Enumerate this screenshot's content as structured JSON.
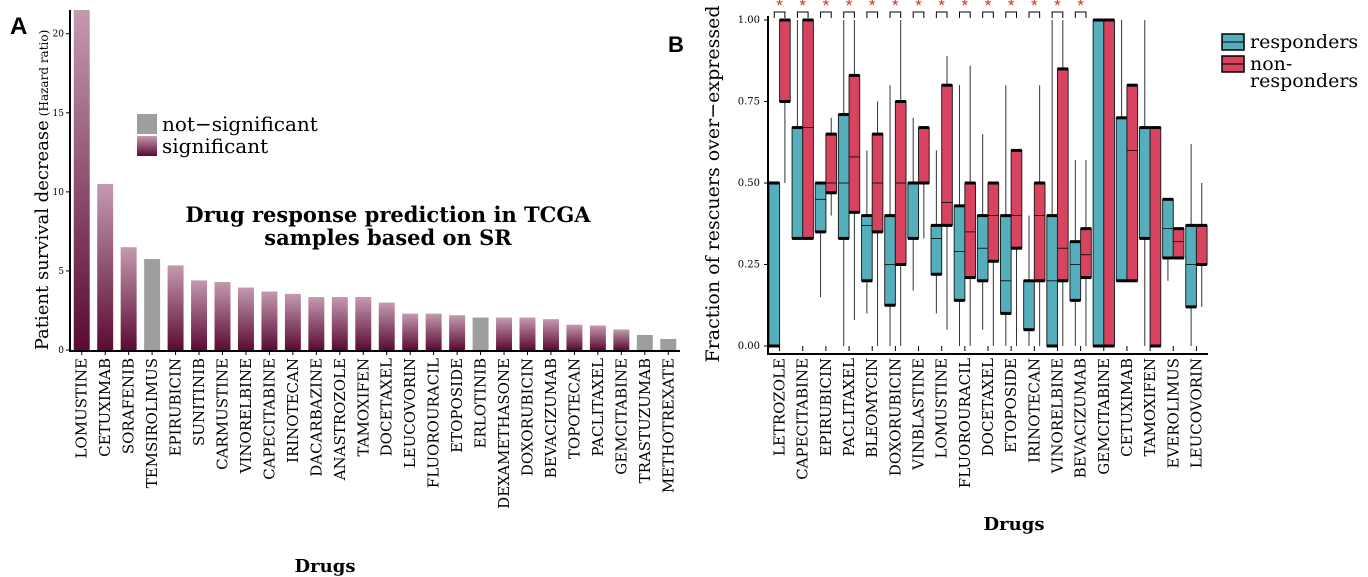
{
  "colors": {
    "sig_top": "#c49ab0",
    "sig_bottom": "#5b0a33",
    "not_sig": "#9e9e9e",
    "responders": "#55aebb",
    "nonresponders": "#d8435f",
    "star": "#c0392b"
  },
  "chart_data": [
    {
      "panel": "A",
      "type": "bar",
      "title": "Drug response prediction in TCGA samples based on SR",
      "title_lines": [
        "Drug response prediction in TCGA",
        "samples based on SR"
      ],
      "xlabel": "Drugs",
      "ylabel": "Patient survival decrease",
      "ylabel_unit": "(Hazard ratio)",
      "ylim": [
        0,
        21.5
      ],
      "yticks": [
        0,
        5,
        10,
        15,
        20
      ],
      "legend": {
        "placement": "top-left",
        "entries": [
          "not−significant",
          "significant"
        ]
      },
      "categories": [
        "LOMUSTINE",
        "CETUXIMAB",
        "SORAFENIB",
        "TEMSIROLIMUS",
        "EPIRUBICIN",
        "SUNITINIB",
        "CARMUSTINE",
        "VINORELBINE",
        "CAPECITABINE",
        "IRINOTECAN",
        "DACARBAZINE",
        "ANASTROZOLE",
        "TAMOXIFEN",
        "DOCETAXEL",
        "LEUCOVORIN",
        "FLUOROURACIL",
        "ETOPOSIDE",
        "ERLOTINIB",
        "DEXAMETHASONE",
        "DOXORUBICIN",
        "BEVACIZUMAB",
        "TOPOTECAN",
        "PACLITAXEL",
        "GEMCITABINE",
        "TRASTUZUMAB",
        "METHOTREXATE"
      ],
      "values": [
        21.5,
        10.5,
        6.5,
        5.75,
        5.35,
        4.4,
        4.3,
        3.95,
        3.7,
        3.55,
        3.35,
        3.35,
        3.35,
        3.0,
        2.3,
        2.3,
        2.2,
        2.05,
        2.05,
        2.05,
        1.95,
        1.6,
        1.55,
        1.3,
        0.95,
        0.7
      ],
      "significant": [
        true,
        true,
        true,
        false,
        true,
        true,
        true,
        true,
        true,
        true,
        true,
        true,
        true,
        true,
        true,
        true,
        true,
        false,
        true,
        true,
        true,
        true,
        true,
        true,
        false,
        false
      ]
    },
    {
      "panel": "B",
      "type": "box",
      "xlabel": "Drugs",
      "ylabel": "Fraction of rescuers over−expressed",
      "ylim": [
        0,
        1
      ],
      "yticks": [
        "0.00",
        "0.25",
        "0.50",
        "0.75",
        "1.00"
      ],
      "legend": {
        "placement": "top-right",
        "entries": [
          "responders",
          "non-responders"
        ]
      },
      "categories": [
        "LETROZOLE",
        "CAPECITABINE",
        "EPIRUBICIN",
        "PACLITAXEL",
        "BLEOMYCIN",
        "DOXORUBICIN",
        "VINBLASTINE",
        "LOMUSTINE",
        "FLUOROURACIL",
        "DOCETAXEL",
        "ETOPOSIDE",
        "IRINOTECAN",
        "VINORELBINE",
        "BEVACIZUMAB",
        "GEMCITABINE",
        "CETUXIMAB",
        "TAMOXIFEN",
        "EVEROLIMUS",
        "LEUCOVORIN"
      ],
      "significance_marker": "*",
      "significant": [
        true,
        true,
        true,
        true,
        true,
        true,
        true,
        true,
        true,
        true,
        true,
        true,
        true,
        true,
        false,
        false,
        false,
        false,
        false
      ],
      "series": [
        {
          "name": "responders",
          "boxes": [
            {
              "lo": 0.0,
              "q1": 0.0,
              "med": 0.0,
              "q3": 0.5,
              "hi": 0.5
            },
            {
              "lo": 0.33,
              "q1": 0.33,
              "med": 0.33,
              "q3": 0.67,
              "hi": 1.0
            },
            {
              "lo": 0.15,
              "q1": 0.35,
              "med": 0.45,
              "q3": 0.5,
              "hi": 0.5
            },
            {
              "lo": 0.0,
              "q1": 0.33,
              "med": 0.5,
              "q3": 0.71,
              "hi": 1.0
            },
            {
              "lo": 0.1,
              "q1": 0.2,
              "med": 0.37,
              "q3": 0.4,
              "hi": 0.6
            },
            {
              "lo": 0.0,
              "q1": 0.125,
              "med": 0.25,
              "q3": 0.4,
              "hi": 0.8
            },
            {
              "lo": 0.17,
              "q1": 0.33,
              "med": 0.5,
              "q3": 0.5,
              "hi": 0.7
            },
            {
              "lo": 0.1,
              "q1": 0.22,
              "med": 0.33,
              "q3": 0.37,
              "hi": 0.6
            },
            {
              "lo": 0.0,
              "q1": 0.14,
              "med": 0.29,
              "q3": 0.43,
              "hi": 0.8
            },
            {
              "lo": 0.05,
              "q1": 0.2,
              "med": 0.3,
              "q3": 0.4,
              "hi": 0.65
            },
            {
              "lo": 0.0,
              "q1": 0.1,
              "med": 0.2,
              "q3": 0.4,
              "hi": 0.8
            },
            {
              "lo": 0.0,
              "q1": 0.05,
              "med": 0.2,
              "q3": 0.2,
              "hi": 0.4
            },
            {
              "lo": 0.0,
              "q1": 0.0,
              "med": 0.2,
              "q3": 0.4,
              "hi": 1.0
            },
            {
              "lo": 0.0,
              "q1": 0.14,
              "med": 0.25,
              "q3": 0.32,
              "hi": 0.57
            },
            {
              "lo": 0.0,
              "q1": 0.0,
              "med": 1.0,
              "q3": 1.0,
              "hi": 1.0
            },
            {
              "lo": 0.2,
              "q1": 0.2,
              "med": 0.2,
              "q3": 0.7,
              "hi": 1.0
            },
            {
              "lo": 0.0,
              "q1": 0.33,
              "med": 0.67,
              "q3": 0.67,
              "hi": 1.0
            },
            {
              "lo": 0.2,
              "q1": 0.27,
              "med": 0.36,
              "q3": 0.45,
              "hi": 0.45
            },
            {
              "lo": 0.0,
              "q1": 0.12,
              "med": 0.25,
              "q3": 0.37,
              "hi": 0.62
            }
          ]
        },
        {
          "name": "non-responders",
          "boxes": [
            {
              "lo": 0.5,
              "q1": 0.75,
              "med": 1.0,
              "q3": 1.0,
              "hi": 1.0
            },
            {
              "lo": 0.33,
              "q1": 0.33,
              "med": 0.67,
              "q3": 1.0,
              "hi": 1.0
            },
            {
              "lo": 0.4,
              "q1": 0.47,
              "med": 0.5,
              "q3": 0.65,
              "hi": 0.7
            },
            {
              "lo": 0.08,
              "q1": 0.41,
              "med": 0.58,
              "q3": 0.83,
              "hi": 1.0
            },
            {
              "lo": 0.0,
              "q1": 0.35,
              "med": 0.5,
              "q3": 0.65,
              "hi": 0.75
            },
            {
              "lo": 0.0,
              "q1": 0.25,
              "med": 0.5,
              "q3": 0.75,
              "hi": 1.0
            },
            {
              "lo": 0.33,
              "q1": 0.5,
              "med": 0.5,
              "q3": 0.67,
              "hi": 0.67
            },
            {
              "lo": 0.05,
              "q1": 0.37,
              "med": 0.44,
              "q3": 0.8,
              "hi": 0.89
            },
            {
              "lo": 0.0,
              "q1": 0.21,
              "med": 0.35,
              "q3": 0.5,
              "hi": 0.86
            },
            {
              "lo": 0.0,
              "q1": 0.26,
              "med": 0.4,
              "q3": 0.5,
              "hi": 0.5
            },
            {
              "lo": 0.0,
              "q1": 0.3,
              "med": 0.4,
              "q3": 0.6,
              "hi": 0.6
            },
            {
              "lo": 0.0,
              "q1": 0.2,
              "med": 0.4,
              "q3": 0.5,
              "hi": 0.8
            },
            {
              "lo": 0.0,
              "q1": 0.2,
              "med": 0.3,
              "q3": 0.85,
              "hi": 1.0
            },
            {
              "lo": 0.0,
              "q1": 0.21,
              "med": 0.28,
              "q3": 0.36,
              "hi": 0.57
            },
            {
              "lo": 0.0,
              "q1": 0.0,
              "med": 1.0,
              "q3": 1.0,
              "hi": 1.0
            },
            {
              "lo": 0.2,
              "q1": 0.2,
              "med": 0.6,
              "q3": 0.8,
              "hi": 0.8
            },
            {
              "lo": 0.0,
              "q1": 0.0,
              "med": 0.67,
              "q3": 0.67,
              "hi": 0.67
            },
            {
              "lo": 0.27,
              "q1": 0.27,
              "med": 0.32,
              "q3": 0.36,
              "hi": 0.36
            },
            {
              "lo": 0.12,
              "q1": 0.25,
              "med": 0.37,
              "q3": 0.37,
              "hi": 0.5
            }
          ]
        }
      ]
    }
  ],
  "panel_labels": [
    "A",
    "B"
  ]
}
